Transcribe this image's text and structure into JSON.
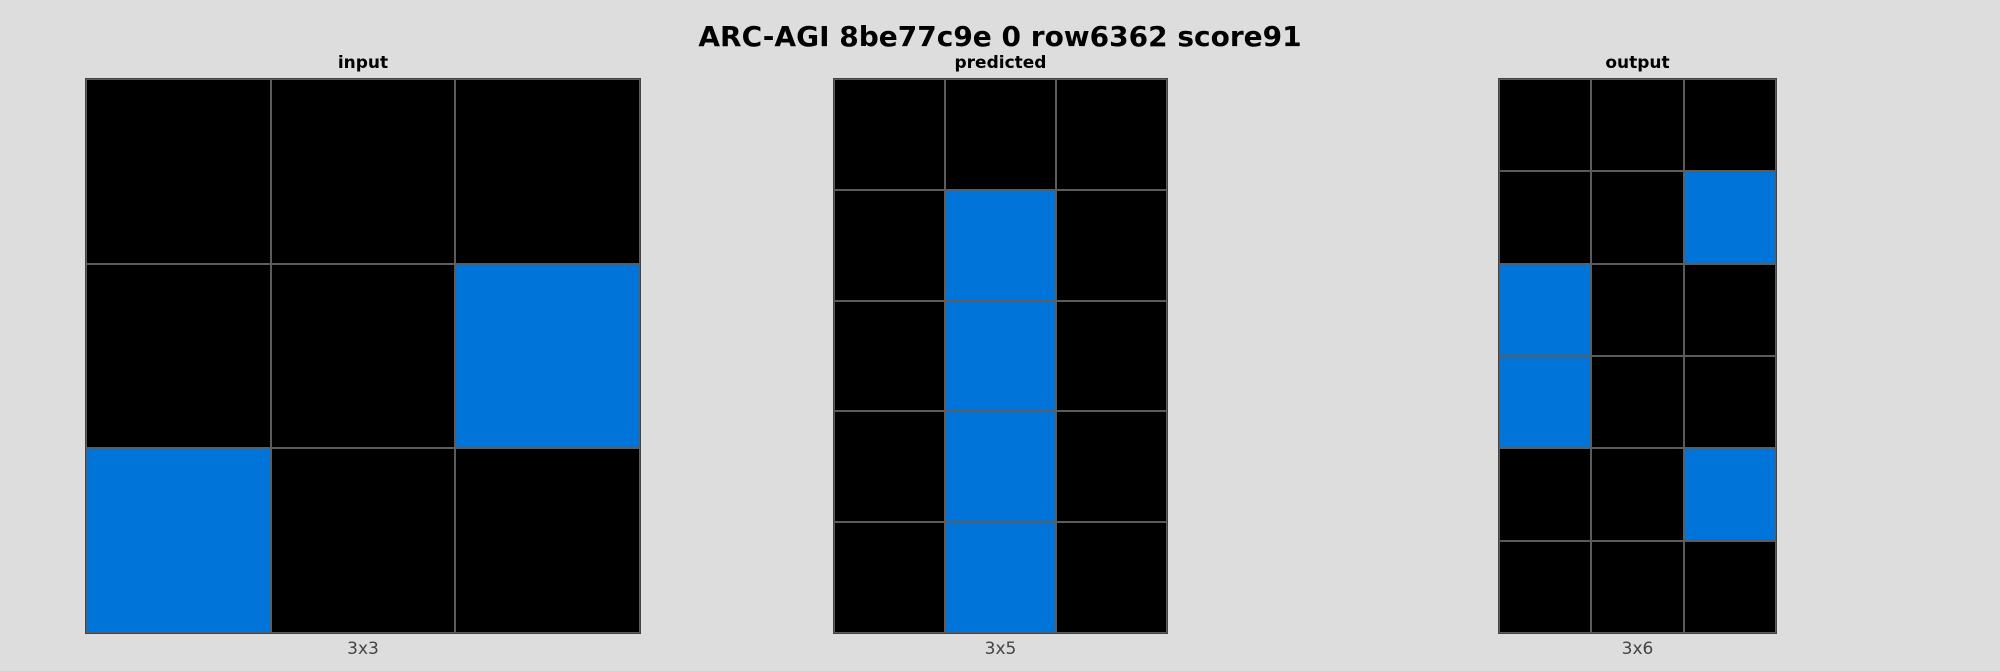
{
  "title": "ARC-AGI 8be77c9e 0 row6362 score91",
  "palette": {
    "0": "#000000",
    "1": "#0074d9"
  },
  "panels": [
    {
      "id": "input",
      "title": "input",
      "caption": "3x3",
      "rows": [
        [
          0,
          0,
          0
        ],
        [
          0,
          0,
          1
        ],
        [
          1,
          0,
          0
        ]
      ]
    },
    {
      "id": "predicted",
      "title": "predicted",
      "caption": "3x5",
      "rows": [
        [
          0,
          0,
          0
        ],
        [
          0,
          1,
          0
        ],
        [
          0,
          1,
          0
        ],
        [
          0,
          1,
          0
        ],
        [
          0,
          1,
          0
        ]
      ]
    },
    {
      "id": "output",
      "title": "output",
      "caption": "3x6",
      "rows": [
        [
          0,
          0,
          0
        ],
        [
          0,
          0,
          1
        ],
        [
          1,
          0,
          0
        ],
        [
          1,
          0,
          0
        ],
        [
          0,
          0,
          1
        ],
        [
          0,
          0,
          0
        ]
      ]
    }
  ]
}
